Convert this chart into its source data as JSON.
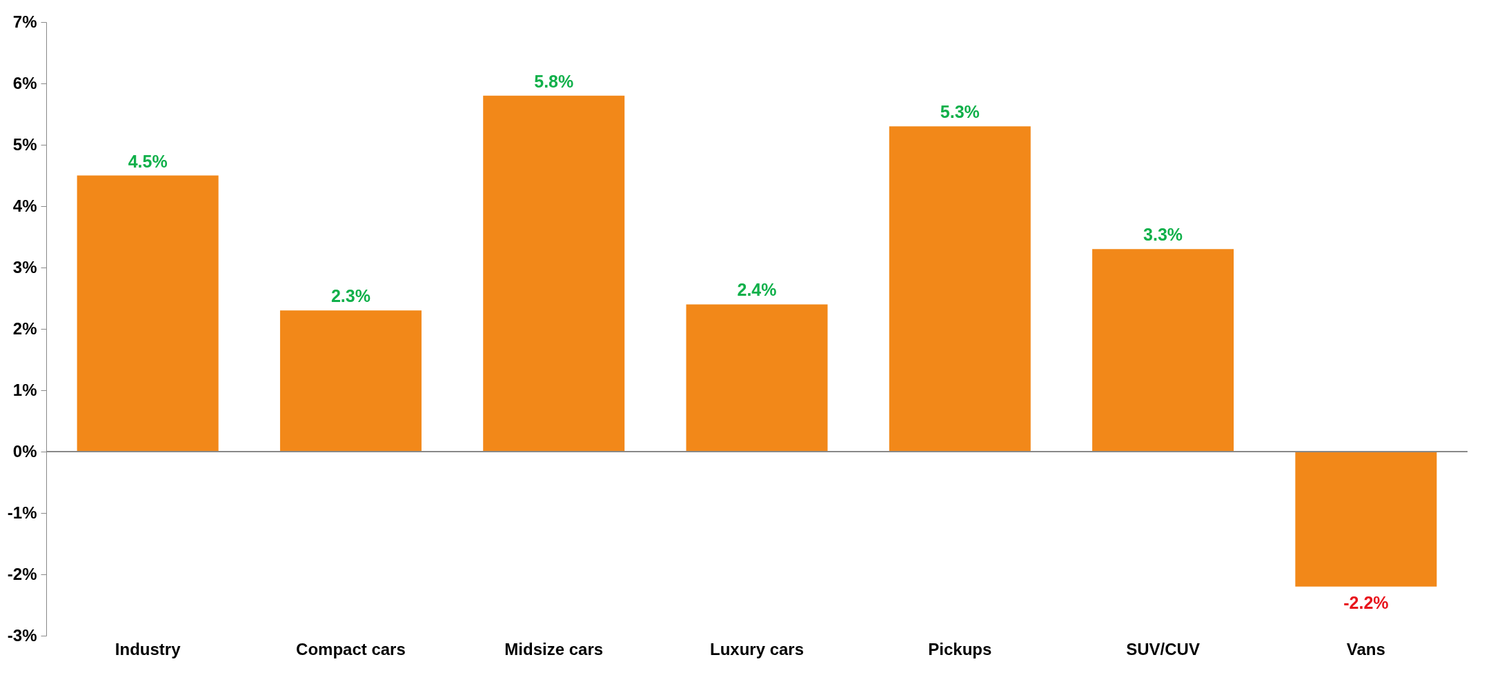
{
  "chart_data": {
    "type": "bar",
    "categories": [
      "Industry",
      "Compact cars",
      "Midsize cars",
      "Luxury cars",
      "Pickups",
      "SUV/CUV",
      "Vans"
    ],
    "values": [
      4.5,
      2.3,
      5.8,
      2.4,
      5.3,
      3.3,
      -2.2
    ],
    "color": "#f28819",
    "ylim": [
      -3,
      7
    ],
    "yticks": [
      {
        "value": -3,
        "label": "-3%"
      },
      {
        "value": -2,
        "label": "-2%"
      },
      {
        "value": -1,
        "label": "-1%"
      },
      {
        "value": 0,
        "label": "0%"
      },
      {
        "value": 1,
        "label": "1%"
      },
      {
        "value": 2,
        "label": "2%"
      },
      {
        "value": 3,
        "label": "3%"
      },
      {
        "value": 4,
        "label": "4%"
      },
      {
        "value": 5,
        "label": "5%"
      },
      {
        "value": 6,
        "label": "6%"
      },
      {
        "value": 7,
        "label": "7%"
      }
    ],
    "value_labels": [
      "4.5%",
      "2.3%",
      "5.8%",
      "2.4%",
      "5.3%",
      "3.3%",
      "-2.2%"
    ]
  }
}
